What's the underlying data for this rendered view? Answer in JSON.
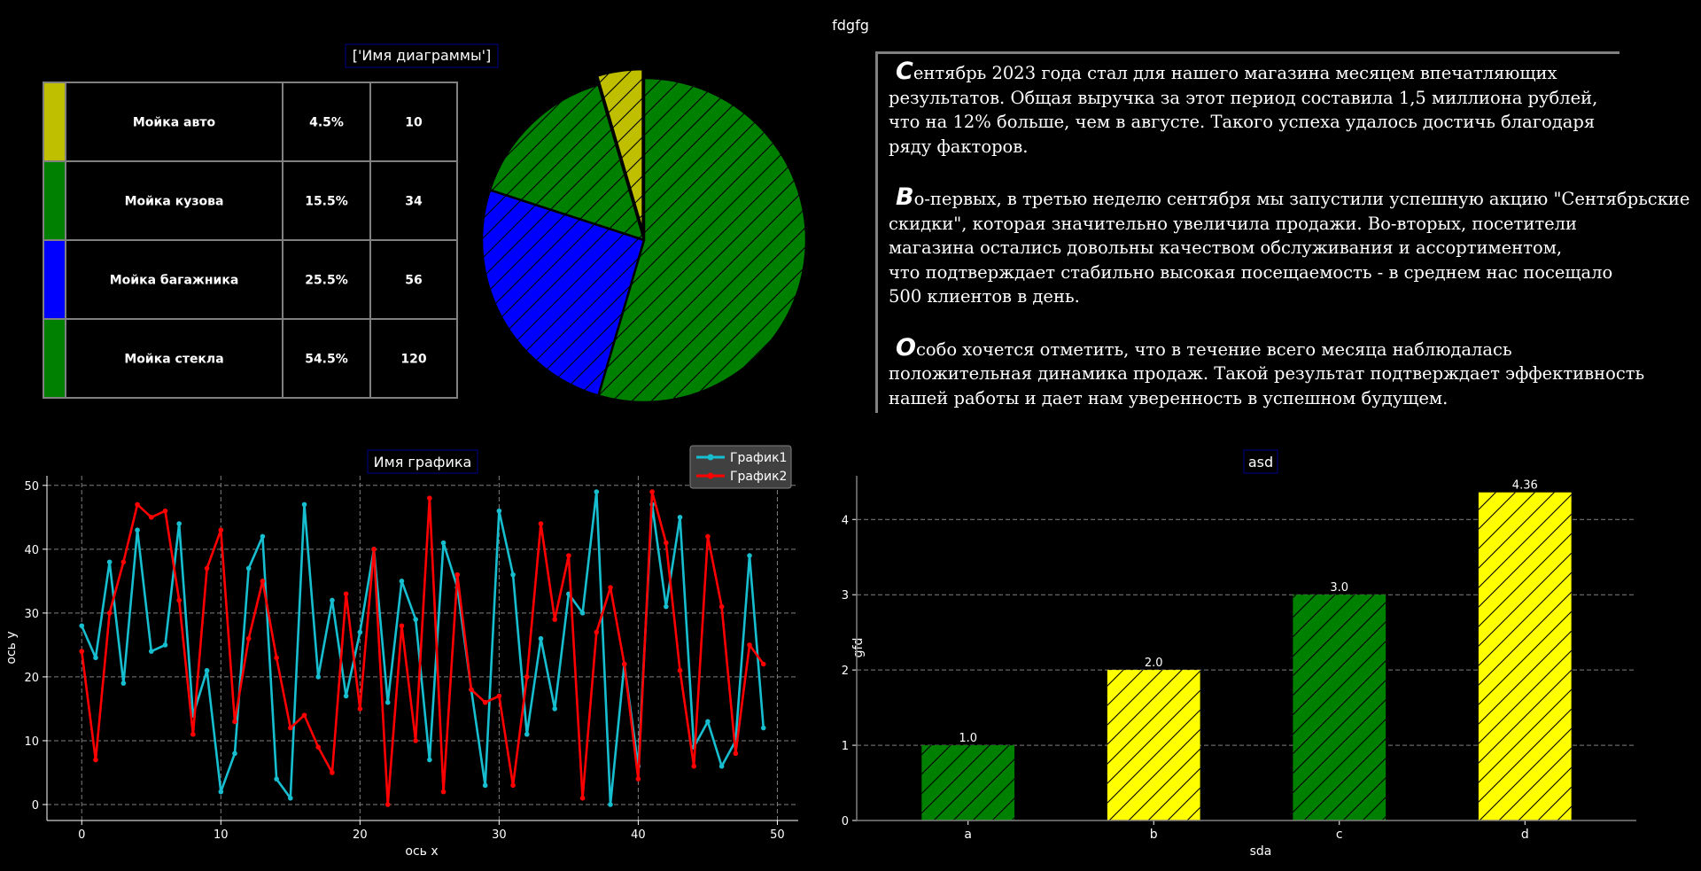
{
  "figure": {
    "suptitle": "fdgfg"
  },
  "colors": {
    "background": "#000000",
    "yellow_green": "#bfbf00",
    "green": "#008000",
    "blue": "#0000ff",
    "yellow": "#ffff00",
    "cyan": "#17becf",
    "red": "#ff0000",
    "title_border": "#00008b"
  },
  "table": {
    "title": "['Имя диаграммы']",
    "rows": [
      {
        "color": "#bfbf00",
        "name": "Мойка авто",
        "percent": "4.5%",
        "value": "10"
      },
      {
        "color": "#008000",
        "name": "Мойка кузова",
        "percent": "15.5%",
        "value": "34"
      },
      {
        "color": "#0000ff",
        "name": "Мойка багажника",
        "percent": "25.5%",
        "value": "56"
      },
      {
        "color": "#008000",
        "name": "Мойка стекла",
        "percent": "54.5%",
        "value": "120"
      }
    ]
  },
  "report": {
    "paragraphs": [
      {
        "cap": "С",
        "text": "ентябрь 2023 года стал для нашего магазина месяцем впечатляющих\nрезультатов. Общая выручка за этот период составила 1,5 миллиона рублей,\nчто на 12% больше, чем в августе. Такого успеха удалось достичь благодаря\nряду факторов."
      },
      {
        "cap": "В",
        "text": "о-первых, в третью неделю сентября мы запустили успешную акцию \"Сентябрьские\nскидки\", которая значительно увеличила продажи. Во-вторых, посетители\nмагазина остались довольны качеством обслуживания и ассортиментом,\nчто подтверждает стабильно высокая посещаемость - в среднем нас посещало\n500 клиентов в день."
      },
      {
        "cap": "О",
        "text": "собо хочется отметить, что в течение всего месяца наблюдалась\nположительная динамика продаж. Такой результат подтверждает эффективность\nнашей работы и дает нам уверенность в успешном будущем."
      }
    ]
  },
  "chart_data": [
    {
      "type": "pie",
      "labels": [
        "Мойка авто",
        "Мойка кузова",
        "Мойка багажника",
        "Мойка стекла"
      ],
      "values": [
        10,
        34,
        56,
        120
      ],
      "colors": [
        "#bfbf00",
        "#008000",
        "#0000ff",
        "#008000"
      ],
      "hatch": "/",
      "explode_first": true
    },
    {
      "type": "line",
      "title": "Имя графика",
      "xlabel": "ось х",
      "ylabel": "ось у",
      "xlim": [
        -2.5,
        51.5
      ],
      "ylim": [
        -2.5,
        51.5
      ],
      "xticks": [
        0,
        10,
        20,
        30,
        40,
        50
      ],
      "yticks": [
        0,
        10,
        20,
        30,
        40,
        50
      ],
      "grid": true,
      "legend_position": "top-right",
      "x": [
        0,
        1,
        2,
        3,
        4,
        5,
        6,
        7,
        8,
        9,
        10,
        11,
        12,
        13,
        14,
        15,
        16,
        17,
        18,
        19,
        20,
        21,
        22,
        23,
        24,
        25,
        26,
        27,
        28,
        29,
        30,
        31,
        32,
        33,
        34,
        35,
        36,
        37,
        38,
        39,
        40,
        41,
        42,
        43,
        44,
        45,
        46,
        47,
        48,
        49
      ],
      "series": [
        {
          "name": "График1",
          "color": "#17becf",
          "values": [
            28,
            23,
            38,
            19,
            43,
            24,
            25,
            44,
            14,
            21,
            2,
            8,
            37,
            42,
            4,
            1,
            47,
            20,
            32,
            17,
            27,
            40,
            16,
            35,
            29,
            7,
            41,
            34,
            18,
            3,
            46,
            36,
            11,
            26,
            15,
            33,
            30,
            49,
            0,
            22,
            6,
            47,
            31,
            45,
            9,
            13,
            6,
            10,
            39,
            12
          ]
        },
        {
          "name": "График2",
          "color": "#ff0000",
          "values": [
            24,
            7,
            30,
            38,
            47,
            45,
            46,
            32,
            11,
            37,
            43,
            13,
            26,
            35,
            23,
            12,
            14,
            9,
            5,
            33,
            15,
            40,
            0,
            28,
            10,
            48,
            2,
            36,
            18,
            16,
            17,
            3,
            20,
            44,
            29,
            39,
            1,
            27,
            34,
            22,
            4,
            49,
            41,
            21,
            6,
            42,
            31,
            8,
            25,
            22
          ]
        }
      ]
    },
    {
      "type": "bar",
      "title": "asd",
      "xlabel": "sda",
      "ylabel": "gfd",
      "categories": [
        "a",
        "b",
        "c",
        "d"
      ],
      "values": [
        1.0,
        2.0,
        3.0,
        4.36
      ],
      "value_labels": [
        "1.0",
        "2.0",
        "3.0",
        "4.36"
      ],
      "colors": [
        "#008000",
        "#ffff00",
        "#008000",
        "#ffff00"
      ],
      "ylim": [
        0,
        4.58
      ],
      "yticks": [
        0,
        1,
        2,
        3,
        4
      ],
      "grid": "y",
      "hatch": "/"
    }
  ]
}
